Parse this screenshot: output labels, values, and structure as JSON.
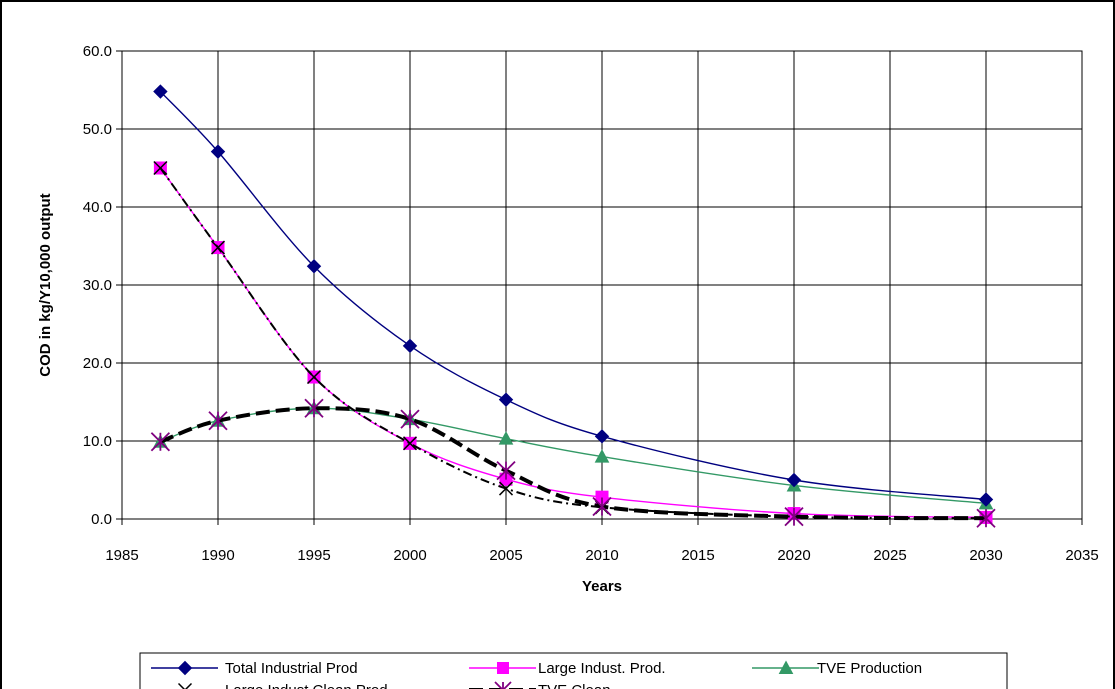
{
  "chart_data": {
    "type": "line",
    "title": "",
    "xlabel": "Years",
    "ylabel": "COD in kg/Y10,000 output",
    "xlim": [
      1985,
      2035
    ],
    "ylim": [
      0,
      60
    ],
    "xticks": [
      1985,
      1990,
      1995,
      2000,
      2005,
      2010,
      2015,
      2020,
      2025,
      2030,
      2035
    ],
    "yticks": [
      0,
      10,
      20,
      30,
      40,
      50,
      60
    ],
    "xtick_labels": [
      "1985",
      "1990",
      "1995",
      "2000",
      "2005",
      "2010",
      "2015",
      "2020",
      "2025",
      "2030",
      "2035"
    ],
    "ytick_labels": [
      "0.0",
      "10.0",
      "20.0",
      "30.0",
      "40.0",
      "50.0",
      "60.0"
    ],
    "grid": true,
    "legend_position": "bottom",
    "x": [
      1987,
      1990,
      1995,
      2000,
      2005,
      2010,
      2020,
      2030
    ],
    "series": [
      {
        "name": "Total Industrial Prod",
        "values": [
          54.8,
          47.1,
          32.4,
          22.2,
          15.3,
          10.6,
          5.0,
          2.5
        ],
        "color": "#000080",
        "marker": "diamond",
        "line": "solid"
      },
      {
        "name": "Large Indust. Prod.",
        "values": [
          45.0,
          34.8,
          18.2,
          9.7,
          5.1,
          2.8,
          0.7,
          0.2
        ],
        "color": "#ff00ff",
        "marker": "square",
        "line": "solid"
      },
      {
        "name": "TVE Production",
        "values": [
          9.9,
          12.6,
          14.2,
          12.8,
          10.3,
          8.0,
          4.3,
          2.0
        ],
        "color": "#339966",
        "marker": "triangle",
        "line": "solid"
      },
      {
        "name": "Large Indust.Clean Prod.",
        "values": [
          45.0,
          34.8,
          18.2,
          9.7,
          3.9,
          1.5,
          0.3,
          0.1
        ],
        "color": "#000000",
        "marker": "x",
        "line": "dashdot"
      },
      {
        "name": "TVE Clean",
        "values": [
          9.9,
          12.6,
          14.2,
          12.8,
          6.2,
          1.6,
          0.3,
          0.1
        ],
        "color": "#000000",
        "marker": "star",
        "line": "heavydash"
      }
    ]
  }
}
